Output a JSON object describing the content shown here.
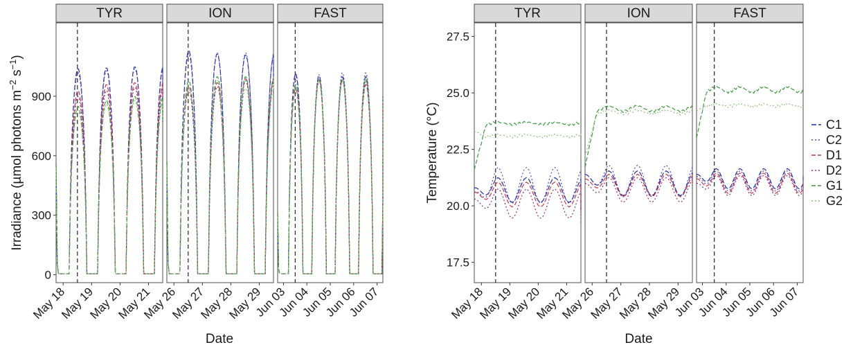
{
  "figure": {
    "facets": [
      "TYR",
      "ION",
      "FAST"
    ],
    "xlabel": "Date",
    "legend_position": "right",
    "colors": {
      "C1": "#1f2d9e",
      "C2": "#5a46b4",
      "D1": "#c8324a",
      "D2": "#962a6e",
      "G1": "#3c9a3c",
      "G2": "#8cbe7a",
      "strip_fill": "#d9d9d9",
      "panel_border": "#4d4d4d",
      "grid": "none",
      "vline": "#222222"
    }
  },
  "chart_data": [
    {
      "type": "line",
      "panel": "left",
      "ylabel_parts": [
        "Irradiance (µmol photons m",
        "−2",
        " s",
        "−1",
        ")"
      ],
      "ylim": [
        -40,
        1270
      ],
      "yticks": [
        0,
        300,
        600,
        900
      ],
      "ytick_labels": [
        "0",
        "300",
        "600",
        "900"
      ],
      "grid": false,
      "facets": [
        {
          "name": "TYR",
          "xlim": [
            "2019-05-17T18:00",
            "2019-05-21T12:00"
          ],
          "xticks": [
            "2019-05-18",
            "2019-05-19",
            "2019-05-20",
            "2019-05-21"
          ],
          "xtick_labels": [
            "May 18",
            "May 19",
            "May 20",
            "May 21"
          ],
          "vline": "2019-05-18T12:00",
          "series_start": "2019-05-17T18:00",
          "series_end": "2019-05-21T12:00",
          "pre_value": 560,
          "peaks": {
            "C1": [
              1040,
              1045,
              1050
            ],
            "C2": [
              1020,
              1030,
              1040
            ],
            "D1": [
              930,
              960,
              970
            ],
            "D2": [
              900,
              930,
              945
            ],
            "G1": [
              850,
              880,
              900
            ],
            "G2": [
              830,
              860,
              880
            ]
          },
          "end_value": 760
        },
        {
          "name": "ION",
          "xlim": [
            "2019-05-25T18:00",
            "2019-05-29T12:00"
          ],
          "xticks": [
            "2019-05-26",
            "2019-05-27",
            "2019-05-28",
            "2019-05-29"
          ],
          "xtick_labels": [
            "May 26",
            "May 27",
            "May 28",
            "May 29"
          ],
          "vline": "2019-05-26T12:00",
          "series_start": "2019-05-25T18:00",
          "series_end": "2019-05-29T12:00",
          "pre_value": 570,
          "peaks": {
            "C1": [
              1130,
              1115,
              1110
            ],
            "C2": [
              1110,
              1120,
              1120
            ],
            "D1": [
              950,
              970,
              990
            ],
            "D2": [
              930,
              950,
              980
            ],
            "G1": [
              980,
              1000,
              1000
            ],
            "G2": [
              960,
              980,
              940
            ]
          },
          "end_value": 1000
        },
        {
          "name": "FAST",
          "xlim": [
            "2019-06-02T18:00",
            "2019-06-07T06:00"
          ],
          "xticks": [
            "2019-06-03",
            "2019-06-04",
            "2019-06-05",
            "2019-06-06",
            "2019-06-07"
          ],
          "xtick_labels": [
            "Jun 03",
            "Jun 04",
            "Jun 05",
            "Jun 06",
            "Jun 07"
          ],
          "vline": "2019-06-03T12:00",
          "series_start": "2019-06-02T18:00",
          "series_end": "2019-06-07T06:00",
          "pre_value": 310,
          "peaks": {
            "C1": [
              1015,
              1005,
              1000,
              1000,
              1030
            ],
            "C2": [
              1000,
              1010,
              1020,
              1020,
              1020
            ],
            "D1": [
              940,
              980,
              980,
              960,
              960
            ],
            "D2": [
              940,
              985,
              990,
              980,
              980
            ],
            "G1": [
              960,
              990,
              990,
              990,
              990
            ],
            "G2": [
              950,
              980,
              980,
              980,
              980
            ]
          },
          "end_value": 900
        }
      ]
    },
    {
      "type": "line",
      "panel": "right",
      "ylabel": "Temperature (°C)",
      "ylim": [
        16.6,
        28.1
      ],
      "yticks": [
        17.5,
        20.0,
        22.5,
        25.0,
        27.5
      ],
      "ytick_labels": [
        "17.5",
        "20.0",
        "22.5",
        "25.0",
        "27.5"
      ],
      "grid": false,
      "legend": [
        "C1",
        "C2",
        "D1",
        "D2",
        "G1",
        "G2"
      ],
      "facets": [
        {
          "name": "TYR",
          "xlim": [
            "2019-05-17T18:00",
            "2019-05-21T12:00"
          ],
          "xticks": [
            "2019-05-18",
            "2019-05-19",
            "2019-05-20",
            "2019-05-21"
          ],
          "xtick_labels": [
            "May 18",
            "May 19",
            "May 20",
            "May 21"
          ],
          "vline": "2019-05-18T12:00",
          "start": "2019-05-17T18:00",
          "end": "2019-05-21T12:00",
          "series": {
            "C1": {
              "base": 20.7,
              "amp": 0.55,
              "start": 20.8,
              "end": 19.8
            },
            "C2": {
              "base": 20.9,
              "amp": 0.8,
              "start": 20.6,
              "end": 19.6
            },
            "D1": {
              "base": 20.5,
              "amp": 0.55,
              "start": 20.6,
              "end": 19.8
            },
            "D2": {
              "base": 20.1,
              "amp": 0.65,
              "start": 20.3,
              "end": 19.2
            },
            "G1": {
              "base": 23.65,
              "amp": 0.05,
              "start": 21.6,
              "end": 23.75
            },
            "G2": {
              "base": 23.1,
              "amp": 0.05,
              "start": 23.3,
              "end": 23.1
            }
          }
        },
        {
          "name": "ION",
          "xlim": [
            "2019-05-25T18:00",
            "2019-05-29T12:00"
          ],
          "xticks": [
            "2019-05-26",
            "2019-05-27",
            "2019-05-28",
            "2019-05-29"
          ],
          "xtick_labels": [
            "May 26",
            "May 27",
            "May 28",
            "May 29"
          ],
          "vline": "2019-05-26T12:00",
          "start": "2019-05-25T18:00",
          "end": "2019-05-29T12:00",
          "series": {
            "C1": {
              "base": 21.0,
              "amp": 0.55,
              "start": 21.4,
              "end": 21.2
            },
            "C2": {
              "base": 21.1,
              "amp": 0.7,
              "start": 21.4,
              "end": 21.3
            },
            "D1": {
              "base": 20.9,
              "amp": 0.5,
              "start": 21.2,
              "end": 21.0
            },
            "D2": {
              "base": 20.7,
              "amp": 0.55,
              "start": 21.0,
              "end": 20.8
            },
            "G1": {
              "base": 24.3,
              "amp": 0.12,
              "start": 21.7,
              "end": 24.6
            },
            "G2": {
              "base": 24.15,
              "amp": 0.08,
              "start": 22.2,
              "end": 24.2
            }
          }
        },
        {
          "name": "FAST",
          "xlim": [
            "2019-06-02T18:00",
            "2019-06-07T06:00"
          ],
          "xticks": [
            "2019-06-03",
            "2019-06-04",
            "2019-06-05",
            "2019-06-06",
            "2019-06-07"
          ],
          "xtick_labels": [
            "Jun 03",
            "Jun 04",
            "Jun 05",
            "Jun 06",
            "Jun 07"
          ],
          "vline": "2019-06-03T12:00",
          "start": "2019-06-02T18:00",
          "end": "2019-06-07T06:00",
          "series": {
            "C1": {
              "base": 21.2,
              "amp": 0.45,
              "start": 21.4,
              "end": 21.4
            },
            "C2": {
              "base": 21.1,
              "amp": 0.45,
              "start": 21.3,
              "end": 21.2
            },
            "D1": {
              "base": 21.0,
              "amp": 0.45,
              "start": 21.2,
              "end": 21.0
            },
            "D2": {
              "base": 20.9,
              "amp": 0.45,
              "start": 21.0,
              "end": 20.9
            },
            "G1": {
              "base": 25.15,
              "amp": 0.12,
              "start": 23.0,
              "end": 25.3
            },
            "G2": {
              "base": 24.45,
              "amp": 0.05,
              "start": 24.2,
              "end": 24.5
            }
          }
        }
      ]
    }
  ]
}
